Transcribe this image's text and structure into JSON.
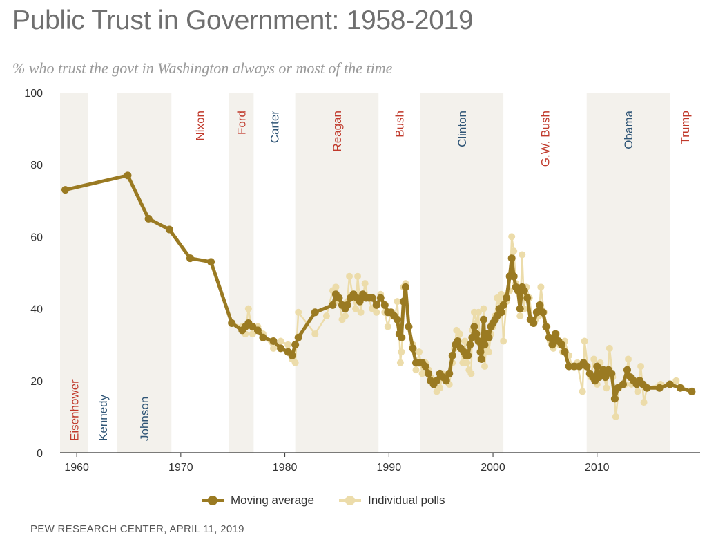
{
  "title": "Public Trust in Government: 1958-2019",
  "subtitle": "% who trust the govt in Washington always or most of the time",
  "source": "PEW RESEARCH CENTER, APRIL 11, 2019",
  "colors": {
    "moving_average": "#9a7a22",
    "individual_polls": "#ecdcaa",
    "shade": "#f3f1ec",
    "republican": "#c0392b",
    "democrat": "#2f5576",
    "axis": "#333333"
  },
  "legend": {
    "moving_average": "Moving average",
    "individual_polls": "Individual polls"
  },
  "chart_data": {
    "type": "line",
    "title": "Public Trust in Government: 1958-2019",
    "subtitle": "% who trust the govt in Washington always or most of the time",
    "xlim": [
      1958.4,
      2019.9
    ],
    "ylim": [
      0,
      100
    ],
    "x_ticks": [
      1960,
      1970,
      1980,
      1990,
      2000,
      2010
    ],
    "y_ticks": [
      0,
      20,
      40,
      60,
      80,
      100
    ],
    "grid": false,
    "legend_position": "bottom",
    "presidents": [
      {
        "name": "Eisenhower",
        "start": 1958.4,
        "end": 1961.1,
        "party": "R",
        "shaded": true,
        "label_pos": "bottom"
      },
      {
        "name": "Kennedy",
        "start": 1961.1,
        "end": 1963.9,
        "party": "D",
        "shaded": false,
        "label_pos": "bottom"
      },
      {
        "name": "Johnson",
        "start": 1963.9,
        "end": 1969.1,
        "party": "D",
        "shaded": true,
        "label_pos": "bottom"
      },
      {
        "name": "Nixon",
        "start": 1969.1,
        "end": 1974.6,
        "party": "R",
        "shaded": false,
        "label_pos": "top"
      },
      {
        "name": "Ford",
        "start": 1974.6,
        "end": 1977.0,
        "party": "R",
        "shaded": true,
        "label_pos": "top"
      },
      {
        "name": "Carter",
        "start": 1977.0,
        "end": 1981.0,
        "party": "D",
        "shaded": false,
        "label_pos": "top"
      },
      {
        "name": "Reagan",
        "start": 1981.0,
        "end": 1989.0,
        "party": "R",
        "shaded": true,
        "label_pos": "top"
      },
      {
        "name": "Bush",
        "start": 1989.0,
        "end": 1993.0,
        "party": "R",
        "shaded": false,
        "label_pos": "top"
      },
      {
        "name": "Clinton",
        "start": 1993.0,
        "end": 2001.0,
        "party": "D",
        "shaded": true,
        "label_pos": "top"
      },
      {
        "name": "G.W. Bush",
        "start": 2001.0,
        "end": 2009.0,
        "party": "R",
        "shaded": false,
        "label_pos": "top"
      },
      {
        "name": "Obama",
        "start": 2009.0,
        "end": 2017.0,
        "party": "D",
        "shaded": true,
        "label_pos": "top"
      },
      {
        "name": "Trump",
        "start": 2017.0,
        "end": 2019.9,
        "party": "R",
        "shaded": false,
        "label_pos": "top"
      }
    ],
    "series": [
      {
        "name": "Individual polls",
        "points": [
          [
            1958.9,
            73
          ],
          [
            1964.9,
            77
          ],
          [
            1966.9,
            65
          ],
          [
            1968.9,
            62
          ],
          [
            1970.9,
            54
          ],
          [
            1972.9,
            53
          ],
          [
            1974.9,
            36
          ],
          [
            1975.9,
            35
          ],
          [
            1976.2,
            33
          ],
          [
            1976.5,
            40
          ],
          [
            1976.9,
            33
          ],
          [
            1977.4,
            35
          ],
          [
            1977.9,
            33
          ],
          [
            1978.9,
            29
          ],
          [
            1979.6,
            31
          ],
          [
            1980.3,
            30
          ],
          [
            1980.7,
            26
          ],
          [
            1981.0,
            25
          ],
          [
            1981.3,
            39
          ],
          [
            1982.9,
            33
          ],
          [
            1984.0,
            38
          ],
          [
            1984.6,
            45
          ],
          [
            1984.9,
            46
          ],
          [
            1985.2,
            42
          ],
          [
            1985.5,
            37
          ],
          [
            1985.8,
            38
          ],
          [
            1986.0,
            42
          ],
          [
            1986.2,
            49
          ],
          [
            1986.5,
            44
          ],
          [
            1986.8,
            40
          ],
          [
            1987.0,
            49
          ],
          [
            1987.3,
            39
          ],
          [
            1987.5,
            43
          ],
          [
            1987.7,
            47
          ],
          [
            1988.0,
            43
          ],
          [
            1988.4,
            40
          ],
          [
            1988.8,
            39
          ],
          [
            1989.2,
            44
          ],
          [
            1989.6,
            39
          ],
          [
            1989.9,
            35
          ],
          [
            1990.2,
            39
          ],
          [
            1990.6,
            38
          ],
          [
            1990.8,
            42
          ],
          [
            1991.0,
            33
          ],
          [
            1991.1,
            25
          ],
          [
            1991.2,
            28
          ],
          [
            1991.3,
            32
          ],
          [
            1991.4,
            46
          ],
          [
            1991.6,
            47
          ],
          [
            1991.9,
            35
          ],
          [
            1992.3,
            30
          ],
          [
            1992.6,
            23
          ],
          [
            1992.9,
            28
          ],
          [
            1993.2,
            22
          ],
          [
            1993.5,
            25
          ],
          [
            1993.8,
            23
          ],
          [
            1994.0,
            21
          ],
          [
            1994.3,
            20
          ],
          [
            1994.6,
            17
          ],
          [
            1994.9,
            18
          ],
          [
            1995.2,
            22
          ],
          [
            1995.5,
            21
          ],
          [
            1995.8,
            19
          ],
          [
            1996.1,
            25
          ],
          [
            1996.3,
            29
          ],
          [
            1996.5,
            34
          ],
          [
            1996.8,
            33
          ],
          [
            1997.1,
            25
          ],
          [
            1997.3,
            31
          ],
          [
            1997.5,
            25
          ],
          [
            1997.7,
            23
          ],
          [
            1997.9,
            22
          ],
          [
            1998.0,
            34
          ],
          [
            1998.2,
            39
          ],
          [
            1998.4,
            36
          ],
          [
            1998.6,
            39
          ],
          [
            1998.8,
            26
          ],
          [
            1998.9,
            28
          ],
          [
            1999.1,
            40
          ],
          [
            1999.2,
            24
          ],
          [
            1999.4,
            31
          ],
          [
            1999.6,
            28
          ],
          [
            1999.8,
            33
          ],
          [
            2000.0,
            35
          ],
          [
            2000.2,
            38
          ],
          [
            2000.4,
            43
          ],
          [
            2000.6,
            42
          ],
          [
            2000.8,
            44
          ],
          [
            2001.0,
            31
          ],
          [
            2001.3,
            42
          ],
          [
            2001.6,
            45
          ],
          [
            2001.8,
            60
          ],
          [
            2002.0,
            56
          ],
          [
            2002.2,
            47
          ],
          [
            2002.4,
            45
          ],
          [
            2002.6,
            38
          ],
          [
            2002.8,
            55
          ],
          [
            2003.0,
            40
          ],
          [
            2003.2,
            46
          ],
          [
            2003.5,
            43
          ],
          [
            2003.8,
            36
          ],
          [
            2004.1,
            37
          ],
          [
            2004.4,
            38
          ],
          [
            2004.6,
            46
          ],
          [
            2004.9,
            39
          ],
          [
            2005.2,
            35
          ],
          [
            2005.5,
            31
          ],
          [
            2005.8,
            29
          ],
          [
            2006.1,
            33
          ],
          [
            2006.4,
            30
          ],
          [
            2006.7,
            28
          ],
          [
            2006.9,
            31
          ],
          [
            2007.3,
            27
          ],
          [
            2007.6,
            24
          ],
          [
            2008.1,
            25
          ],
          [
            2008.6,
            17
          ],
          [
            2008.8,
            31
          ],
          [
            2009.1,
            24
          ],
          [
            2009.4,
            21
          ],
          [
            2009.7,
            26
          ],
          [
            2010.0,
            19
          ],
          [
            2010.3,
            25
          ],
          [
            2010.6,
            22
          ],
          [
            2010.9,
            18
          ],
          [
            2011.2,
            29
          ],
          [
            2011.5,
            21
          ],
          [
            2011.8,
            10
          ],
          [
            2012.1,
            18
          ],
          [
            2012.7,
            19
          ],
          [
            2013.0,
            26
          ],
          [
            2013.3,
            19
          ],
          [
            2013.6,
            20
          ],
          [
            2013.9,
            17
          ],
          [
            2014.2,
            24
          ],
          [
            2014.5,
            14
          ],
          [
            2014.8,
            18
          ],
          [
            2016.1,
            19
          ],
          [
            2017.1,
            19
          ],
          [
            2017.6,
            20
          ],
          [
            2018.1,
            18
          ],
          [
            2019.1,
            17
          ]
        ]
      },
      {
        "name": "Moving average",
        "points": [
          [
            1958.9,
            73
          ],
          [
            1964.9,
            77
          ],
          [
            1966.9,
            65
          ],
          [
            1968.9,
            62
          ],
          [
            1970.9,
            54
          ],
          [
            1972.9,
            53
          ],
          [
            1974.9,
            36
          ],
          [
            1975.9,
            34
          ],
          [
            1976.2,
            35
          ],
          [
            1976.5,
            36
          ],
          [
            1976.9,
            35
          ],
          [
            1977.4,
            34
          ],
          [
            1977.9,
            32
          ],
          [
            1978.9,
            31
          ],
          [
            1979.6,
            29
          ],
          [
            1980.3,
            28
          ],
          [
            1980.7,
            27
          ],
          [
            1981.0,
            30
          ],
          [
            1981.3,
            32
          ],
          [
            1982.9,
            39
          ],
          [
            1984.6,
            41
          ],
          [
            1984.9,
            44
          ],
          [
            1985.2,
            43
          ],
          [
            1985.5,
            41
          ],
          [
            1985.8,
            40
          ],
          [
            1986.0,
            41
          ],
          [
            1986.3,
            43
          ],
          [
            1986.6,
            44
          ],
          [
            1986.9,
            43
          ],
          [
            1987.2,
            42
          ],
          [
            1987.5,
            44
          ],
          [
            1987.8,
            43
          ],
          [
            1988.1,
            43
          ],
          [
            1988.4,
            43
          ],
          [
            1988.8,
            41
          ],
          [
            1989.2,
            43
          ],
          [
            1989.6,
            41
          ],
          [
            1989.9,
            39
          ],
          [
            1990.2,
            39
          ],
          [
            1990.5,
            38
          ],
          [
            1990.8,
            37
          ],
          [
            1991.0,
            33
          ],
          [
            1991.2,
            32
          ],
          [
            1991.4,
            42
          ],
          [
            1991.6,
            46
          ],
          [
            1991.9,
            35
          ],
          [
            1992.3,
            29
          ],
          [
            1992.6,
            25
          ],
          [
            1992.9,
            25
          ],
          [
            1993.2,
            25
          ],
          [
            1993.5,
            24
          ],
          [
            1993.8,
            22
          ],
          [
            1994.0,
            20
          ],
          [
            1994.3,
            19
          ],
          [
            1994.6,
            20
          ],
          [
            1994.9,
            22
          ],
          [
            1995.2,
            21
          ],
          [
            1995.5,
            20
          ],
          [
            1995.8,
            22
          ],
          [
            1996.1,
            27
          ],
          [
            1996.4,
            30
          ],
          [
            1996.6,
            31
          ],
          [
            1996.9,
            29
          ],
          [
            1997.2,
            28
          ],
          [
            1997.4,
            27
          ],
          [
            1997.6,
            27
          ],
          [
            1997.8,
            30
          ],
          [
            1998.0,
            32
          ],
          [
            1998.2,
            35
          ],
          [
            1998.4,
            33
          ],
          [
            1998.6,
            31
          ],
          [
            1998.8,
            28
          ],
          [
            1998.9,
            26
          ],
          [
            1999.1,
            37
          ],
          [
            1999.2,
            30
          ],
          [
            1999.4,
            33
          ],
          [
            1999.6,
            32
          ],
          [
            1999.8,
            35
          ],
          [
            2000.0,
            36
          ],
          [
            2000.2,
            37
          ],
          [
            2000.4,
            38
          ],
          [
            2000.6,
            40
          ],
          [
            2000.8,
            39
          ],
          [
            2001.0,
            41
          ],
          [
            2001.3,
            43
          ],
          [
            2001.6,
            49
          ],
          [
            2001.8,
            54
          ],
          [
            2002.0,
            49
          ],
          [
            2002.2,
            46
          ],
          [
            2002.4,
            45
          ],
          [
            2002.6,
            40
          ],
          [
            2002.8,
            46
          ],
          [
            2003.0,
            45
          ],
          [
            2003.3,
            43
          ],
          [
            2003.6,
            37
          ],
          [
            2003.9,
            36
          ],
          [
            2004.2,
            39
          ],
          [
            2004.5,
            41
          ],
          [
            2004.8,
            39
          ],
          [
            2005.1,
            35
          ],
          [
            2005.4,
            32
          ],
          [
            2005.7,
            30
          ],
          [
            2006.0,
            33
          ],
          [
            2006.3,
            31
          ],
          [
            2006.6,
            30
          ],
          [
            2006.9,
            28
          ],
          [
            2007.3,
            24
          ],
          [
            2007.8,
            24
          ],
          [
            2008.3,
            24
          ],
          [
            2008.7,
            25
          ],
          [
            2009.0,
            24
          ],
          [
            2009.3,
            22
          ],
          [
            2009.6,
            21
          ],
          [
            2009.8,
            20
          ],
          [
            2010.0,
            24
          ],
          [
            2010.2,
            21
          ],
          [
            2010.4,
            22
          ],
          [
            2010.6,
            23
          ],
          [
            2010.8,
            21
          ],
          [
            2011.1,
            23
          ],
          [
            2011.4,
            22
          ],
          [
            2011.7,
            15
          ],
          [
            2012.0,
            18
          ],
          [
            2012.5,
            19
          ],
          [
            2012.9,
            23
          ],
          [
            2013.2,
            21
          ],
          [
            2013.5,
            20
          ],
          [
            2013.8,
            19
          ],
          [
            2014.1,
            20
          ],
          [
            2014.4,
            19
          ],
          [
            2014.8,
            18
          ],
          [
            2016.0,
            18
          ],
          [
            2017.0,
            19
          ],
          [
            2018.0,
            18
          ],
          [
            2019.1,
            17
          ]
        ]
      }
    ]
  }
}
